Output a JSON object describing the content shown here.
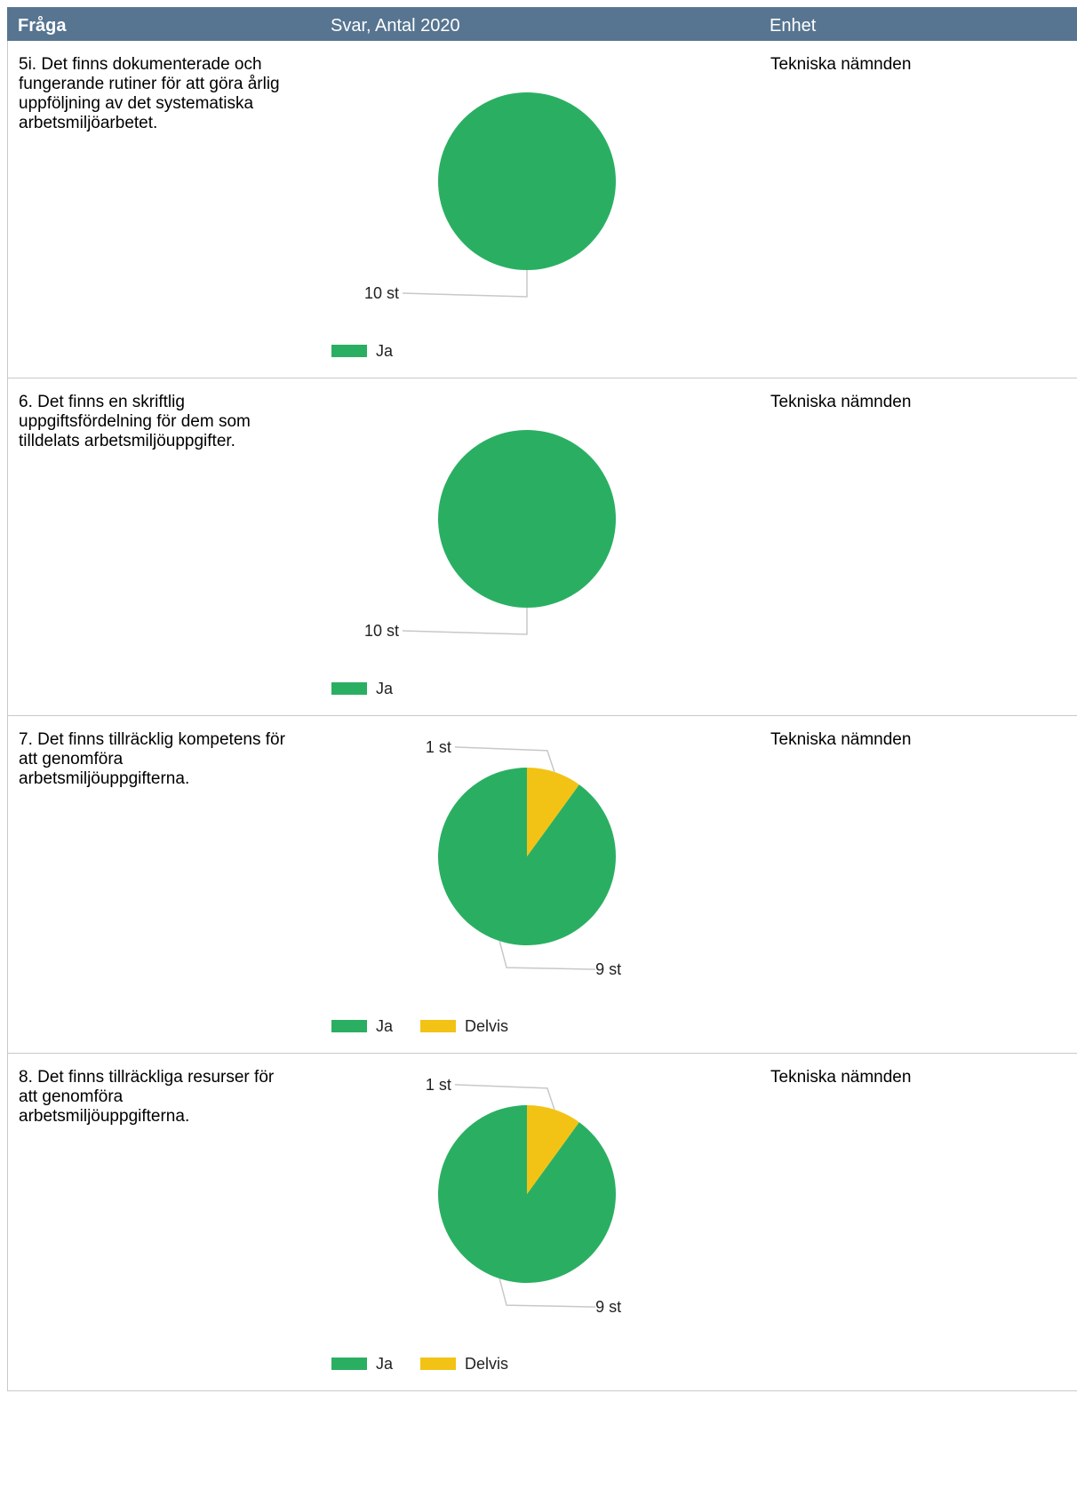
{
  "header": {
    "question": "Fråga",
    "answer": "Svar, Antal 2020",
    "unit": "Enhet"
  },
  "colors": {
    "header_bg": "#577591",
    "Ja": "#2aaf62",
    "Delvis": "#f2c315",
    "leader": "#c8c8c8"
  },
  "rows": [
    {
      "question": "5i. Det finns dokumenterade och fungerande rutiner för att göra årlig uppföljning av det systematiska arbetsmiljöarbetet.",
      "unit": "Tekniska nämnden"
    },
    {
      "question": "6. Det finns en skriftlig uppgiftsfördelning för dem som tilldelats arbetsmiljöuppgifter.",
      "unit": "Tekniska nämnden"
    },
    {
      "question": "7. Det finns tillräcklig kompetens för att genomföra arbetsmiljöuppgifterna.",
      "unit": "Tekniska nämnden"
    },
    {
      "question": "8. Det finns tillräckliga resurser för att genomföra arbetsmiljöuppgifterna.",
      "unit": "Tekniska nämnden"
    }
  ],
  "chart_data": [
    {
      "type": "pie",
      "categories": [
        "Ja"
      ],
      "values": [
        10
      ],
      "labels": [
        "10 st"
      ],
      "legend": [
        "Ja"
      ]
    },
    {
      "type": "pie",
      "categories": [
        "Ja"
      ],
      "values": [
        10
      ],
      "labels": [
        "10 st"
      ],
      "legend": [
        "Ja"
      ]
    },
    {
      "type": "pie",
      "categories": [
        "Ja",
        "Delvis"
      ],
      "values": [
        9,
        1
      ],
      "labels": [
        "9 st",
        "1 st"
      ],
      "legend": [
        "Ja",
        "Delvis"
      ]
    },
    {
      "type": "pie",
      "categories": [
        "Ja",
        "Delvis"
      ],
      "values": [
        9,
        1
      ],
      "labels": [
        "9 st",
        "1 st"
      ],
      "legend": [
        "Ja",
        "Delvis"
      ]
    }
  ]
}
